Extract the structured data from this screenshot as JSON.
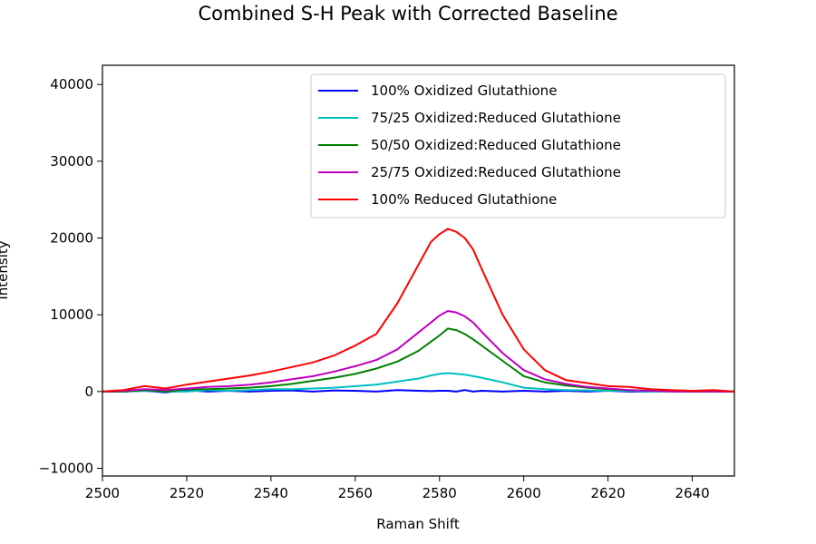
{
  "chart_data": {
    "type": "line",
    "title": "Combined S-H Peak with Corrected Baseline",
    "xlabel": "Raman Shift",
    "ylabel": "Intensity",
    "xlim": [
      2500,
      2650
    ],
    "ylim": [
      -11000,
      42500
    ],
    "xticks": [
      2500,
      2520,
      2540,
      2560,
      2580,
      2600,
      2620,
      2640
    ],
    "yticks": [
      -10000,
      0,
      10000,
      20000,
      30000,
      40000
    ],
    "grid": false,
    "legend_position": "top-right",
    "x": [
      2500,
      2505,
      2510,
      2515,
      2520,
      2525,
      2530,
      2535,
      2540,
      2545,
      2550,
      2555,
      2560,
      2565,
      2570,
      2575,
      2578,
      2580,
      2582,
      2584,
      2586,
      2588,
      2590,
      2595,
      2600,
      2605,
      2610,
      2615,
      2620,
      2625,
      2630,
      2635,
      2640,
      2645,
      2650
    ],
    "series": [
      {
        "name": "100% Oxidized Glutathione",
        "color": "#0000ff",
        "values": [
          0,
          0,
          100,
          -100,
          200,
          0,
          100,
          0,
          100,
          150,
          0,
          150,
          100,
          0,
          200,
          100,
          50,
          100,
          100,
          0,
          200,
          0,
          100,
          0,
          100,
          0,
          100,
          0,
          100,
          0,
          0,
          100,
          0,
          0,
          0
        ]
      },
      {
        "name": "75/25 Oxidized:Reduced Glutathione",
        "color": "#00bfbf",
        "values": [
          0,
          0,
          100,
          0,
          0,
          200,
          100,
          200,
          300,
          300,
          400,
          500,
          700,
          900,
          1300,
          1700,
          2100,
          2300,
          2400,
          2300,
          2200,
          2000,
          1800,
          1200,
          500,
          300,
          200,
          150,
          100,
          100,
          0,
          0,
          0,
          0,
          0
        ]
      },
      {
        "name": "50/50 Oxidized:Reduced Glutathione",
        "color": "#008000",
        "values": [
          0,
          0,
          200,
          0,
          300,
          300,
          400,
          500,
          700,
          1000,
          1400,
          1800,
          2300,
          3000,
          3900,
          5300,
          6500,
          7300,
          8200,
          8000,
          7500,
          6800,
          6000,
          4000,
          2000,
          1200,
          800,
          500,
          300,
          200,
          100,
          100,
          0,
          0,
          0
        ]
      },
      {
        "name": "25/75 Oxidized:Reduced Glutathione",
        "color": "#bf00bf",
        "values": [
          0,
          100,
          300,
          200,
          400,
          600,
          700,
          900,
          1200,
          1600,
          2000,
          2600,
          3300,
          4100,
          5500,
          7700,
          9000,
          9900,
          10500,
          10300,
          9800,
          9000,
          7800,
          5000,
          2800,
          1600,
          1000,
          600,
          400,
          200,
          100,
          0,
          0,
          0,
          0
        ]
      },
      {
        "name": "100% Reduced Glutathione",
        "color": "#ff0000",
        "values": [
          0,
          200,
          700,
          400,
          900,
          1300,
          1700,
          2100,
          2600,
          3200,
          3800,
          4700,
          6000,
          7500,
          11500,
          16500,
          19500,
          20500,
          21200,
          20800,
          20000,
          18500,
          16000,
          10000,
          5500,
          2800,
          1500,
          1100,
          700,
          600,
          300,
          200,
          100,
          200,
          0
        ]
      }
    ]
  }
}
